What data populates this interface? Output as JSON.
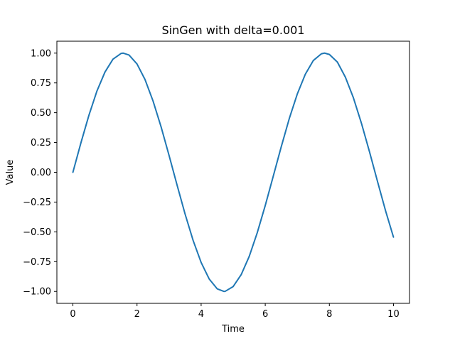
{
  "chart_data": {
    "type": "line",
    "title": "SinGen with delta=0.001",
    "xlabel": "Time",
    "ylabel": "Value",
    "xlim": [
      -0.5,
      10.5
    ],
    "ylim": [
      -1.1,
      1.1
    ],
    "xticks": [
      0,
      2,
      4,
      6,
      8,
      10
    ],
    "xtick_labels": [
      "0",
      "2",
      "4",
      "6",
      "8",
      "10"
    ],
    "yticks": [
      -1.0,
      -0.75,
      -0.5,
      -0.25,
      0.0,
      0.25,
      0.5,
      0.75,
      1.0
    ],
    "ytick_labels": [
      "−1.00",
      "−0.75",
      "−0.50",
      "−0.25",
      "0.00",
      "0.25",
      "0.50",
      "0.75",
      "1.00"
    ],
    "grid": false,
    "series": [
      {
        "color": "#1f77b4",
        "x": [
          0,
          0.25,
          0.5,
          0.75,
          1.0,
          1.25,
          1.5,
          1.57,
          1.75,
          2.0,
          2.25,
          2.5,
          2.75,
          3.0,
          3.25,
          3.5,
          3.75,
          4.0,
          4.25,
          4.5,
          4.71,
          4.75,
          5.0,
          5.25,
          5.5,
          5.75,
          6.0,
          6.25,
          6.5,
          6.75,
          7.0,
          7.25,
          7.5,
          7.75,
          7.85,
          8.0,
          8.25,
          8.5,
          8.75,
          9.0,
          9.25,
          9.5,
          9.75,
          10.0
        ],
        "y": [
          0.0,
          0.247,
          0.479,
          0.682,
          0.841,
          0.949,
          0.997,
          1.0,
          0.984,
          0.909,
          0.778,
          0.598,
          0.382,
          0.141,
          -0.108,
          -0.351,
          -0.572,
          -0.757,
          -0.895,
          -0.978,
          -1.0,
          -0.999,
          -0.959,
          -0.859,
          -0.706,
          -0.508,
          -0.279,
          -0.033,
          0.215,
          0.451,
          0.657,
          0.823,
          0.938,
          0.994,
          1.0,
          0.989,
          0.925,
          0.798,
          0.625,
          0.412,
          0.174,
          -0.075,
          -0.32,
          -0.544
        ]
      }
    ]
  }
}
